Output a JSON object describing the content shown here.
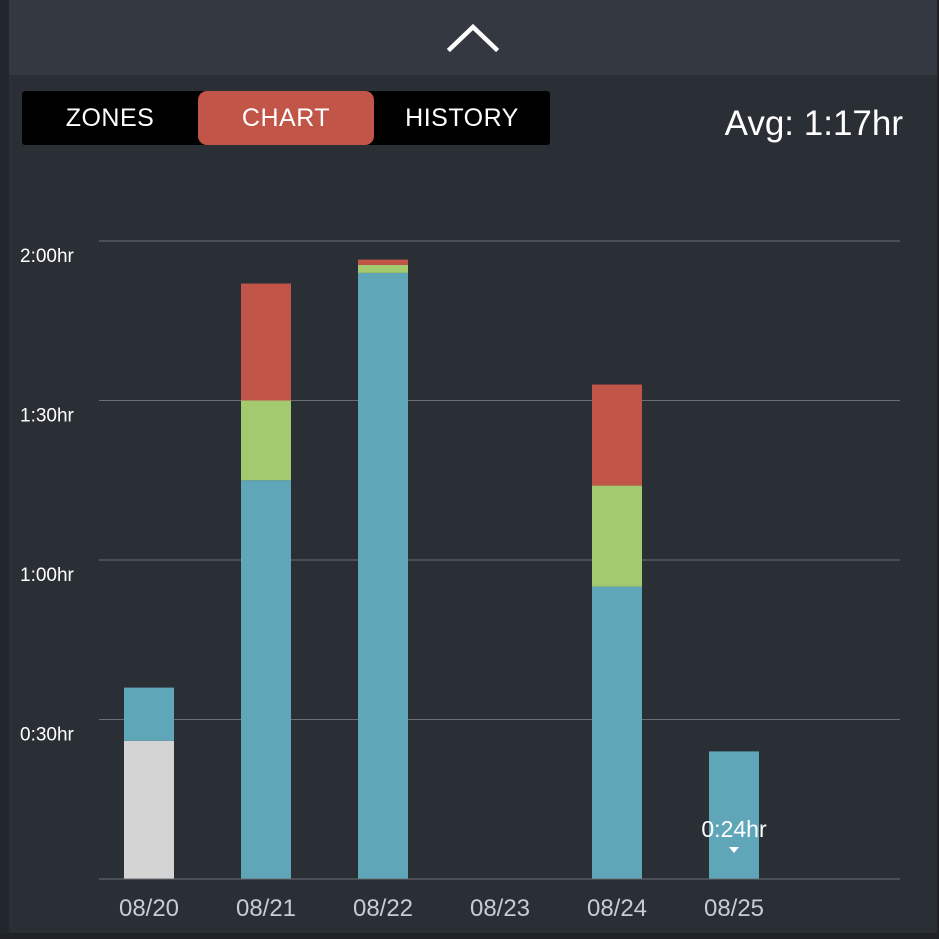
{
  "header": {
    "collapse_icon": "chevron-up-icon"
  },
  "tabs": [
    {
      "label": "ZONES",
      "active": false
    },
    {
      "label": "CHART",
      "active": true
    },
    {
      "label": "HISTORY",
      "active": false
    }
  ],
  "average": {
    "label": "Avg: 1:17hr"
  },
  "colors": {
    "background": "#2a2e35",
    "header": "#333841",
    "tab_active": "#c15548",
    "zone_gray": "#d4d4d4",
    "zone_blue": "#5fa6b9",
    "zone_green": "#a3ca6e",
    "zone_red": "#c15548",
    "gridline": "#6b6f75"
  },
  "chart_data": {
    "type": "bar",
    "stacked": true,
    "categories": [
      "08/20",
      "08/21",
      "08/22",
      "08/23",
      "08/24",
      "08/25"
    ],
    "series": [
      {
        "color": "#d4d4d4",
        "values": [
          26,
          0,
          0,
          0,
          0,
          0
        ]
      },
      {
        "color": "#5fa6b9",
        "values": [
          10,
          75,
          114,
          0,
          55,
          24
        ]
      },
      {
        "color": "#a3ca6e",
        "values": [
          0,
          15,
          1.5,
          0,
          19,
          0
        ]
      },
      {
        "color": "#c15548",
        "values": [
          0,
          22,
          1,
          0,
          19,
          0
        ]
      }
    ],
    "ylim": [
      0,
      120
    ],
    "yticks": [
      {
        "value": 30,
        "label": "0:30hr"
      },
      {
        "value": 60,
        "label": "1:00hr"
      },
      {
        "value": 90,
        "label": "1:30hr"
      },
      {
        "value": 120,
        "label": "2:00hr"
      }
    ],
    "grid": true,
    "annotations": [
      {
        "category": "08/25",
        "text": "0:24hr"
      }
    ]
  }
}
